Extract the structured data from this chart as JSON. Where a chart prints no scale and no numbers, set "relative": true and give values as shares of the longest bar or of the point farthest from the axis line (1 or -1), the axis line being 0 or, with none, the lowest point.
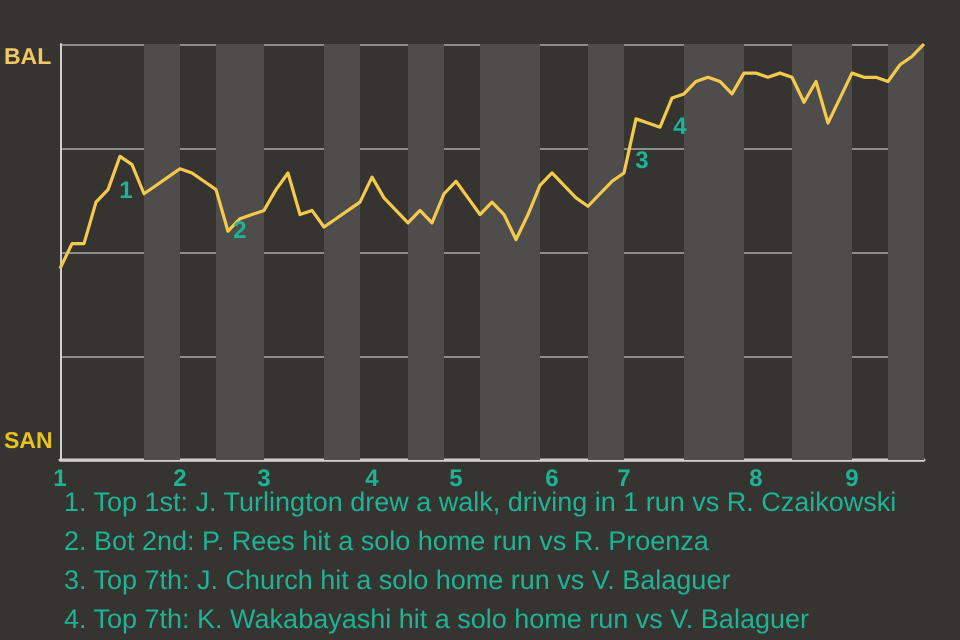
{
  "chart_data": {
    "type": "line",
    "relative": true,
    "categories": [
      "1",
      null,
      null,
      null,
      null,
      null,
      null,
      null,
      null,
      null,
      "2",
      null,
      null,
      null,
      null,
      null,
      null,
      "3",
      null,
      null,
      null,
      null,
      null,
      null,
      null,
      null,
      "4",
      null,
      null,
      null,
      null,
      null,
      null,
      "5",
      null,
      null,
      null,
      null,
      null,
      null,
      null,
      "6",
      null,
      null,
      null,
      null,
      null,
      "7",
      null,
      null,
      null,
      null,
      null,
      null,
      null,
      null,
      null,
      null,
      "8",
      null,
      null,
      null,
      null,
      null,
      null,
      null,
      "9",
      null,
      null,
      null,
      null,
      null,
      null
    ],
    "series": [
      {
        "color": "#f5c94c",
        "values": [
          0.46,
          0.52,
          0.52,
          0.62,
          0.65,
          0.73,
          0.71,
          0.64,
          0.66,
          0.68,
          0.7,
          0.69,
          0.67,
          0.65,
          0.55,
          0.58,
          0.59,
          0.6,
          0.65,
          0.69,
          0.59,
          0.6,
          0.56,
          0.58,
          0.6,
          0.62,
          0.68,
          0.63,
          0.6,
          0.57,
          0.6,
          0.57,
          0.64,
          0.67,
          0.63,
          0.59,
          0.62,
          0.59,
          0.53,
          0.59,
          0.66,
          0.69,
          0.66,
          0.63,
          0.61,
          0.64,
          0.67,
          0.69,
          0.82,
          0.81,
          0.8,
          0.87,
          0.88,
          0.91,
          0.92,
          0.91,
          0.88,
          0.93,
          0.93,
          0.92,
          0.93,
          0.92,
          0.86,
          0.91,
          0.81,
          0.87,
          0.93,
          0.92,
          0.92,
          0.91,
          0.95,
          0.97,
          1.0
        ]
      }
    ],
    "grid": "y",
    "marker": "none",
    "annotations": [
      "BAL",
      "SAN",
      "1",
      "2",
      "3",
      "4",
      "1. Top 1st: J. Turlington drew a walk, driving in 1 run vs R. Czaikowski",
      "2. Bot 2nd: P. Rees hit a solo home run vs R. Proenza",
      "3. Top 7th: J. Church hit a solo home run vs V. Balaguer",
      "4. Top 7th: K. Wakabayashi hit a solo home run vs V. Balaguer"
    ]
  }
}
